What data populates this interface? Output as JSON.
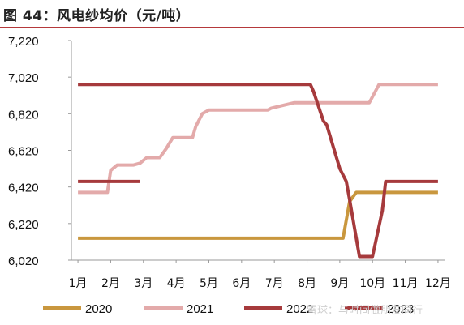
{
  "title": "图 44：风电纱均价（元/吨）",
  "watermark": "雪球：与时间做朋友同行",
  "colors": {
    "2020": "#c9973e",
    "2021": "#e3aaaa",
    "2022": "#a63a3c",
    "2023": "#a63a3c",
    "axis": "#999999",
    "rule": "#b5393b"
  },
  "chart_data": {
    "type": "line",
    "title": "风电纱均价（元/吨）",
    "ylabel": "元/吨",
    "ylim": [
      6020,
      7220
    ],
    "yticks": [
      6020,
      6220,
      6420,
      6620,
      6820,
      7020,
      7220
    ],
    "ytick_labels": [
      "6,020",
      "6,220",
      "6,420",
      "6,620",
      "6,820",
      "7,020",
      "7,220"
    ],
    "xlim": [
      0.8,
      12.2
    ],
    "xticks": [
      1,
      2,
      3,
      4,
      5,
      6,
      7,
      8,
      9,
      10,
      11,
      12
    ],
    "xtick_labels": [
      "1月",
      "2月",
      "3月",
      "4月",
      "5月",
      "6月",
      "7月",
      "8月",
      "9月",
      "10月",
      "11月",
      "12月"
    ],
    "grid": false,
    "legend_position": "bottom",
    "series": [
      {
        "name": "2020",
        "x": [
          1.0,
          9.1,
          9.3,
          9.5,
          12.0
        ],
        "y": [
          6140,
          6140,
          6340,
          6390,
          6390
        ]
      },
      {
        "name": "2021",
        "x": [
          1.0,
          1.9,
          2.0,
          2.2,
          2.7,
          2.9,
          3.1,
          3.5,
          3.7,
          3.9,
          4.5,
          4.6,
          4.8,
          5.0,
          5.5,
          6.0,
          6.5,
          6.8,
          6.9,
          7.6,
          8.5,
          9.0,
          9.9,
          10.2,
          10.8,
          12.0
        ],
        "y": [
          6390,
          6390,
          6510,
          6540,
          6540,
          6550,
          6580,
          6580,
          6630,
          6690,
          6690,
          6750,
          6820,
          6840,
          6840,
          6840,
          6840,
          6840,
          6850,
          6880,
          6880,
          6880,
          6880,
          6980,
          6980,
          6980
        ]
      },
      {
        "name": "2022",
        "x": [
          1.0,
          8.1,
          8.2,
          8.5,
          8.6,
          8.8,
          9.0,
          9.2,
          9.3,
          9.6,
          9.9,
          10.0,
          10.3,
          10.4,
          12.0
        ],
        "y": [
          6980,
          6980,
          6940,
          6780,
          6760,
          6640,
          6520,
          6450,
          6350,
          6040,
          6040,
          6040,
          6290,
          6450,
          6450
        ]
      },
      {
        "name": "2023",
        "x": [
          1.0,
          2.9
        ],
        "y": [
          6450,
          6450
        ]
      }
    ]
  }
}
